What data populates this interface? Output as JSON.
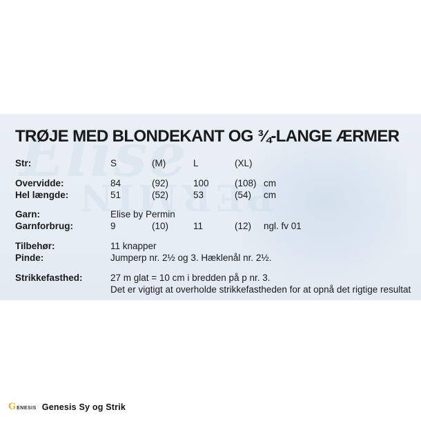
{
  "title": "TRØJE MED BLONDEKANT OG ¾-LANGE ÆRMER",
  "watermarks": {
    "script_text": "Elise",
    "block_text": "PERMIN"
  },
  "table": {
    "size": {
      "label": "Str:",
      "values": [
        "S",
        "(M)",
        "L",
        "(XL)"
      ],
      "unit": ""
    },
    "measure_rows": [
      {
        "label": "Overvidde:",
        "values": [
          "84",
          "(92)",
          "100",
          "(108)"
        ],
        "unit": "cm"
      },
      {
        "label": "Hel længde:",
        "values": [
          "51",
          "(52)",
          "53",
          "(54)"
        ],
        "unit": "cm"
      }
    ],
    "garn": {
      "label": "Garn:",
      "value": "Elise by Permin"
    },
    "garnforbrug": {
      "label": "Garnforbrug:",
      "values": [
        "9",
        "(10)",
        "11",
        "(12)"
      ],
      "unit": "ngl. fv 01"
    },
    "tilbehoer": {
      "label": "Tilbehør:",
      "value": "11 knapper"
    },
    "pinde": {
      "label": "Pinde:",
      "value": "Jumperp nr. 2½ og 3. Hæklenål nr. 2½."
    },
    "strikkefasthed": {
      "label": "Strikkefasthed:",
      "line1": "27 m glat = 10 cm i bredden på p nr. 3.",
      "line2": "Det er vigtigt at overholde strikkefastheden for at opnå det rigtige resultat"
    }
  },
  "footer": {
    "logo_initial": "G",
    "logo_text": "ENESIS",
    "brand": "Genesis Sy og Strik"
  },
  "colors": {
    "panel_background": "#e7edf4",
    "text": "#1a1a1a",
    "watermark_blue": "#8fb2d6",
    "logo_yellow": "#e2b23a"
  }
}
